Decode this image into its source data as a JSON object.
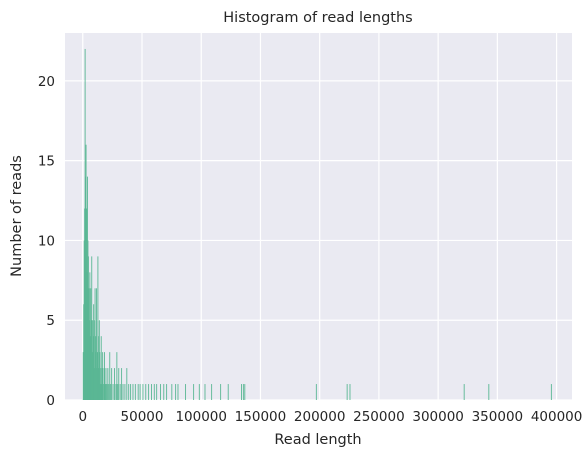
{
  "chart_data": {
    "type": "bar",
    "title": "Histogram of read lengths",
    "xlabel": "Read length",
    "ylabel": "Number of reads",
    "xlim": [
      -15000,
      413000
    ],
    "ylim": [
      0,
      23
    ],
    "xticks": [
      0,
      50000,
      100000,
      150000,
      200000,
      250000,
      300000,
      350000,
      400000
    ],
    "xtick_labels": [
      "0",
      "50000",
      "100000",
      "150000",
      "200000",
      "250000",
      "300000",
      "350000",
      "400000"
    ],
    "yticks": [
      0,
      5,
      10,
      15,
      20
    ],
    "ytick_labels": [
      "0",
      "5",
      "10",
      "15",
      "20"
    ],
    "grid": true,
    "background": "#eaeaf2",
    "bar_color": "#5ab794",
    "light_bar_color": "#c9e6da",
    "bin_width": 400,
    "bins": [
      {
        "x": 0,
        "y": 3
      },
      {
        "x": 400,
        "y": 6
      },
      {
        "x": 800,
        "y": 10
      },
      {
        "x": 1200,
        "y": 12
      },
      {
        "x": 1600,
        "y": 22
      },
      {
        "x": 2000,
        "y": 14
      },
      {
        "x": 2400,
        "y": 16
      },
      {
        "x": 2800,
        "y": 12
      },
      {
        "x": 3200,
        "y": 8
      },
      {
        "x": 3600,
        "y": 14
      },
      {
        "x": 4000,
        "y": 10
      },
      {
        "x": 4400,
        "y": 9
      },
      {
        "x": 4800,
        "y": 7
      },
      {
        "x": 5200,
        "y": 5
      },
      {
        "x": 5600,
        "y": 8
      },
      {
        "x": 6000,
        "y": 4
      },
      {
        "x": 6400,
        "y": 7
      },
      {
        "x": 6800,
        "y": 5
      },
      {
        "x": 7200,
        "y": 9
      },
      {
        "x": 7600,
        "y": 3
      },
      {
        "x": 8000,
        "y": 5
      },
      {
        "x": 8400,
        "y": 4
      },
      {
        "x": 8800,
        "y": 6
      },
      {
        "x": 9200,
        "y": 2
      },
      {
        "x": 9600,
        "y": 5
      },
      {
        "x": 10000,
        "y": 7
      },
      {
        "x": 10400,
        "y": 3
      },
      {
        "x": 10800,
        "y": 4
      },
      {
        "x": 11200,
        "y": 7
      },
      {
        "x": 11600,
        "y": 2
      },
      {
        "x": 12000,
        "y": 3
      },
      {
        "x": 12400,
        "y": 9
      },
      {
        "x": 12800,
        "y": 4
      },
      {
        "x": 13200,
        "y": 2
      },
      {
        "x": 13600,
        "y": 5
      },
      {
        "x": 14000,
        "y": 3
      },
      {
        "x": 14400,
        "y": 1
      },
      {
        "x": 14800,
        "y": 2
      },
      {
        "x": 15200,
        "y": 4
      },
      {
        "x": 15600,
        "y": 1
      },
      {
        "x": 16000,
        "y": 2
      },
      {
        "x": 16400,
        "y": 3
      },
      {
        "x": 17200,
        "y": 1
      },
      {
        "x": 17600,
        "y": 2
      },
      {
        "x": 18000,
        "y": 3
      },
      {
        "x": 18800,
        "y": 1
      },
      {
        "x": 19200,
        "y": 2
      },
      {
        "x": 20000,
        "y": 1
      },
      {
        "x": 20800,
        "y": 2
      },
      {
        "x": 21600,
        "y": 1
      },
      {
        "x": 22400,
        "y": 3
      },
      {
        "x": 23200,
        "y": 1
      },
      {
        "x": 24000,
        "y": 2
      },
      {
        "x": 25200,
        "y": 1
      },
      {
        "x": 26400,
        "y": 2
      },
      {
        "x": 27600,
        "y": 1
      },
      {
        "x": 28400,
        "y": 3
      },
      {
        "x": 29200,
        "y": 1
      },
      {
        "x": 30000,
        "y": 2
      },
      {
        "x": 31200,
        "y": 1
      },
      {
        "x": 32400,
        "y": 2
      },
      {
        "x": 33600,
        "y": 1
      },
      {
        "x": 35200,
        "y": 1
      },
      {
        "x": 36800,
        "y": 2
      },
      {
        "x": 38400,
        "y": 1
      },
      {
        "x": 40000,
        "y": 1
      },
      {
        "x": 42000,
        "y": 1
      },
      {
        "x": 44000,
        "y": 1
      },
      {
        "x": 46400,
        "y": 1
      },
      {
        "x": 48000,
        "y": 1
      },
      {
        "x": 50400,
        "y": 1
      },
      {
        "x": 52800,
        "y": 1
      },
      {
        "x": 55200,
        "y": 1
      },
      {
        "x": 57600,
        "y": 1
      },
      {
        "x": 60000,
        "y": 1
      },
      {
        "x": 62000,
        "y": 1
      },
      {
        "x": 65200,
        "y": 1
      },
      {
        "x": 68000,
        "y": 1
      },
      {
        "x": 70400,
        "y": 1
      },
      {
        "x": 74800,
        "y": 1
      },
      {
        "x": 78000,
        "y": 1
      },
      {
        "x": 80000,
        "y": 1
      },
      {
        "x": 86400,
        "y": 1
      },
      {
        "x": 93200,
        "y": 1
      },
      {
        "x": 98000,
        "y": 1
      },
      {
        "x": 102800,
        "y": 1
      },
      {
        "x": 108400,
        "y": 1
      },
      {
        "x": 116000,
        "y": 1
      },
      {
        "x": 122400,
        "y": 1
      },
      {
        "x": 133600,
        "y": 1
      },
      {
        "x": 135200,
        "y": 1
      },
      {
        "x": 136400,
        "y": 1
      },
      {
        "x": 196800,
        "y": 1
      },
      {
        "x": 222800,
        "y": 1
      },
      {
        "x": 225200,
        "y": 1
      },
      {
        "x": 321600,
        "y": 1
      },
      {
        "x": 342400,
        "y": 1
      },
      {
        "x": 395200,
        "y": 1
      }
    ]
  }
}
